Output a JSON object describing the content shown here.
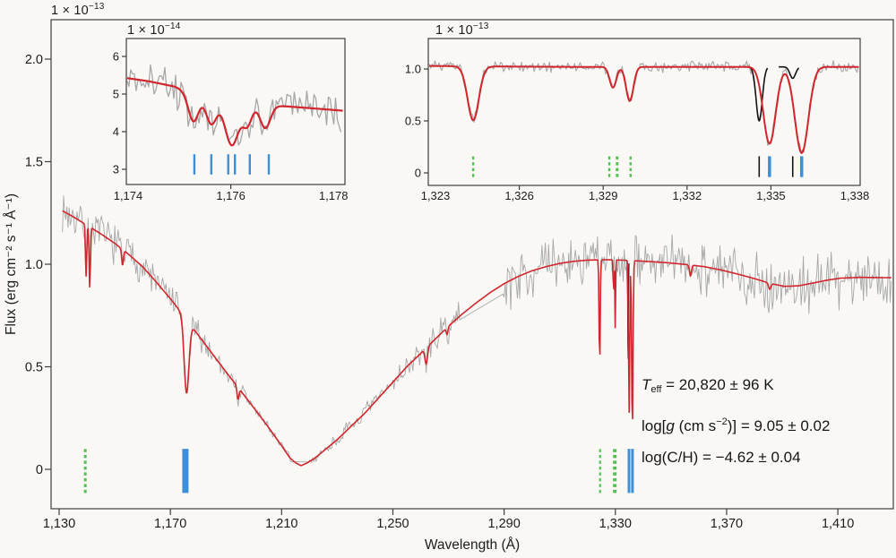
{
  "figure": {
    "kind": "stellar-spectrum-figure",
    "palette": {
      "observed_gray": "#a7a7a7",
      "model_red": "#d2262e",
      "interstellar_black": "#141414",
      "marker_blue": "#3e8fd8",
      "marker_green": "#53c053",
      "axis": "#3d3d3d",
      "text": "#1c1c1c"
    }
  },
  "chart_data": [
    {
      "type": "line",
      "panel": "main",
      "xlabel": "Wavelength (Å)",
      "ylabel": "Flux (erg cm⁻² s⁻¹ Å⁻¹)",
      "scale_label": {
        "base": "1 × 10",
        "exp": "−13"
      },
      "x_range": [
        1127,
        1430
      ],
      "y_range": [
        -0.19,
        2.19
      ],
      "x_ticks": [
        {
          "label": "1,130",
          "value": 1130,
          "tick": true
        },
        {
          "label": "1,170",
          "value": 1170,
          "tick": true
        },
        {
          "label": "1,210",
          "value": 1210,
          "tick": true
        },
        {
          "label": "1,250",
          "value": 1250,
          "tick": true
        },
        {
          "label": "1,290",
          "value": 1290,
          "tick": true
        },
        {
          "label": "1,330",
          "value": 1330,
          "tick": true
        },
        {
          "label": "1,370",
          "value": 1370,
          "tick": true
        },
        {
          "label": "1,410",
          "value": 1410,
          "tick": true
        }
      ],
      "y_ticks": [
        {
          "label": "0",
          "value": 0,
          "tick": true
        },
        {
          "label": "0.5",
          "value": 0.5,
          "tick": true
        },
        {
          "label": "1.0",
          "value": 1.0,
          "tick": true
        },
        {
          "label": "1.5",
          "value": 1.5,
          "tick": true
        },
        {
          "label": "2.0",
          "value": 2.0,
          "tick": true
        }
      ],
      "series": {
        "observed": {
          "color": "#a7a7a7",
          "noise_amp": [
            [
              1131,
              0.075
            ],
            [
              1160,
              0.073
            ],
            [
              1185,
              0.05
            ],
            [
              1200,
              0.032
            ],
            [
              1210,
              0.02
            ],
            [
              1217,
              0.012
            ],
            [
              1224,
              0.02
            ],
            [
              1240,
              0.035
            ],
            [
              1258,
              0.048
            ],
            [
              1274,
              0.06
            ],
            [
              1290,
              0.1
            ],
            [
              1320,
              0.096
            ],
            [
              1350,
              0.105
            ],
            [
              1380,
              0.11
            ],
            [
              1430,
              0.115
            ]
          ]
        },
        "model": {
          "color": "#d2262e",
          "continuum": [
            [
              1131,
              1.262
            ],
            [
              1135,
              1.232
            ],
            [
              1140,
              1.19
            ],
            [
              1145,
              1.148
            ],
            [
              1150,
              1.102
            ],
            [
              1155,
              1.048
            ],
            [
              1160,
              0.988
            ],
            [
              1165,
              0.912
            ],
            [
              1170,
              0.832
            ],
            [
              1175,
              0.745
            ],
            [
              1180,
              0.655
            ],
            [
              1185,
              0.565
            ],
            [
              1190,
              0.475
            ],
            [
              1195,
              0.388
            ],
            [
              1200,
              0.3
            ],
            [
              1205,
              0.21
            ],
            [
              1210,
              0.115
            ],
            [
              1213,
              0.055
            ],
            [
              1215,
              0.032
            ],
            [
              1217,
              0.018
            ],
            [
              1219,
              0.03
            ],
            [
              1222,
              0.055
            ],
            [
              1226,
              0.1
            ],
            [
              1230,
              0.145
            ],
            [
              1235,
              0.21
            ],
            [
              1240,
              0.275
            ],
            [
              1245,
              0.35
            ],
            [
              1250,
              0.425
            ],
            [
              1255,
              0.5
            ],
            [
              1260,
              0.565
            ],
            [
              1265,
              0.632
            ],
            [
              1270,
              0.698
            ],
            [
              1275,
              0.758
            ],
            [
              1280,
              0.812
            ],
            [
              1285,
              0.862
            ],
            [
              1290,
              0.905
            ],
            [
              1295,
              0.94
            ],
            [
              1300,
              0.968
            ],
            [
              1305,
              0.988
            ],
            [
              1310,
              1.004
            ],
            [
              1315,
              1.014
            ],
            [
              1320,
              1.02
            ],
            [
              1326,
              1.022
            ],
            [
              1332,
              1.02
            ],
            [
              1340,
              1.015
            ],
            [
              1348,
              1.008
            ],
            [
              1356,
              0.998
            ],
            [
              1362,
              0.988
            ],
            [
              1368,
              0.972
            ],
            [
              1374,
              0.952
            ],
            [
              1380,
              0.93
            ],
            [
              1386,
              0.905
            ],
            [
              1391,
              0.892
            ],
            [
              1396,
              0.895
            ],
            [
              1401,
              0.908
            ],
            [
              1406,
              0.922
            ],
            [
              1411,
              0.932
            ],
            [
              1418,
              0.936
            ],
            [
              1430,
              0.934
            ]
          ],
          "absorption_lines": [
            {
              "center": 1139.7,
              "depth": 0.25,
              "sigma": 0.22
            },
            {
              "center": 1141.0,
              "depth": 0.3,
              "sigma": 0.22
            },
            {
              "center": 1152.8,
              "depth": 0.08,
              "sigma": 0.3
            },
            {
              "center": 1175.8,
              "depth": 0.36,
              "sigma": 0.85
            },
            {
              "center": 1194.3,
              "depth": 0.06,
              "sigma": 0.35
            },
            {
              "center": 1262.0,
              "depth": 0.08,
              "sigma": 0.45
            },
            {
              "center": 1269.5,
              "depth": 0.035,
              "sigma": 0.3
            },
            {
              "center": 1324.35,
              "depth": 0.52,
              "sigma": 0.2
            },
            {
              "center": 1329.35,
              "depth": 0.2,
              "sigma": 0.12
            },
            {
              "center": 1329.95,
              "depth": 0.33,
              "sigma": 0.13
            },
            {
              "center": 1334.95,
              "depth": 0.74,
              "sigma": 0.22
            },
            {
              "center": 1336.1,
              "depth": 0.84,
              "sigma": 0.24
            },
            {
              "center": 1357.0,
              "depth": 0.055,
              "sigma": 0.35
            },
            {
              "center": 1385.5,
              "depth": 0.03,
              "sigma": 0.4
            }
          ]
        },
        "interstellar": {
          "color": "#141414",
          "segments": [
            {
              "range": [
                1334.0,
                1334.9
              ],
              "center": 1334.58,
              "depth": 0.52,
              "sigma": 0.11
            }
          ]
        }
      },
      "gaps": [
        [
          1213.6,
          1219.2
        ],
        [
          1274.4,
          1289.3
        ]
      ],
      "line_markers": [
        {
          "wl": 1139.4,
          "color": "#53c053",
          "style": "dashed",
          "width": 3
        },
        {
          "wl": 1175.4,
          "color": "#3e8fd8",
          "style": "solid",
          "width": 7
        },
        {
          "wl": 1324.5,
          "color": "#53c053",
          "style": "dashed",
          "width": 2.2
        },
        {
          "wl": 1329.8,
          "color": "#53c053",
          "style": "dashed",
          "width": 4
        },
        {
          "wl": 1334.9,
          "color": "#3e8fd8",
          "style": "solid",
          "width": 3
        },
        {
          "wl": 1336.15,
          "color": "#3e8fd8",
          "style": "solid",
          "width": 3
        }
      ],
      "marker_span": [
        -0.115,
        0.1
      ],
      "annotations": {
        "lines": [
          [
            {
              "t": "T",
              "it": true
            },
            {
              "t": "eff",
              "sub": true
            },
            {
              "t": " = 20,820 ± 96 K"
            }
          ],
          [
            {
              "t": "log["
            },
            {
              "t": "g",
              "it": true
            },
            {
              "t": " (cm s"
            },
            {
              "t": "−2",
              "sup": true
            },
            {
              "t": ")] = 9.05 ± 0.02"
            }
          ],
          [
            {
              "t": "log(C/H) = −4.62 ± 0.04"
            }
          ]
        ]
      }
    },
    {
      "type": "line",
      "panel": "inset-CIII-1175",
      "scale_label": {
        "base": "1 × 10",
        "exp": "−14"
      },
      "x_range": [
        1173.95,
        1178.22
      ],
      "y_range": [
        2.6,
        6.48
      ],
      "x_ticks": [
        {
          "label": "1,174",
          "value": 1174,
          "tick": false
        },
        {
          "label": "1,176",
          "value": 1176,
          "tick": true
        },
        {
          "label": "1,178",
          "value": 1178,
          "tick": false
        }
      ],
      "y_ticks": [
        {
          "label": "3",
          "value": 3,
          "tick": true
        },
        {
          "label": "4",
          "value": 4,
          "tick": true
        },
        {
          "label": "5",
          "value": 5,
          "tick": true
        },
        {
          "label": "6",
          "value": 6,
          "tick": true
        }
      ],
      "series": {
        "observed": {
          "color": "#a7a7a7",
          "noise_amp": [
            [
              1173.9,
              0.42
            ],
            [
              1178.25,
              0.42
            ]
          ]
        },
        "model": {
          "color": "#d2262e",
          "continuum": [
            [
              1173.9,
              5.44
            ],
            [
              1174.4,
              5.34
            ],
            [
              1174.9,
              5.2
            ],
            [
              1175.3,
              4.98
            ],
            [
              1175.9,
              4.8
            ],
            [
              1176.5,
              4.73
            ],
            [
              1177.0,
              4.68
            ],
            [
              1177.5,
              4.63
            ],
            [
              1178.25,
              4.55
            ]
          ],
          "absorption_lines": [
            {
              "center": 1175.27,
              "depth": 0.72,
              "sigma": 0.1
            },
            {
              "center": 1175.62,
              "depth": 0.68,
              "sigma": 0.1
            },
            {
              "center": 1176.02,
              "depth": 1.15,
              "sigma": 0.13
            },
            {
              "center": 1176.32,
              "depth": 0.56,
              "sigma": 0.09
            },
            {
              "center": 1176.67,
              "depth": 0.62,
              "sigma": 0.1
            }
          ]
        },
        "interstellar": {
          "color": "#141414",
          "segments": []
        }
      },
      "gaps": [],
      "line_markers": [
        {
          "wl": 1175.29,
          "color": "#3e8fd8",
          "style": "solid",
          "width": 2.4
        },
        {
          "wl": 1175.62,
          "color": "#3e8fd8",
          "style": "solid",
          "width": 2.4
        },
        {
          "wl": 1175.95,
          "color": "#3e8fd8",
          "style": "solid",
          "width": 2.4
        },
        {
          "wl": 1176.08,
          "color": "#3e8fd8",
          "style": "solid",
          "width": 2.4
        },
        {
          "wl": 1176.37,
          "color": "#3e8fd8",
          "style": "solid",
          "width": 2.4
        },
        {
          "wl": 1176.74,
          "color": "#3e8fd8",
          "style": "solid",
          "width": 2.4
        }
      ],
      "marker_span": [
        2.86,
        3.4
      ]
    },
    {
      "type": "line",
      "panel": "inset-CII-1335",
      "scale_label": {
        "base": "1 × 10",
        "exp": "−13"
      },
      "x_range": [
        1322.74,
        1338.19
      ],
      "y_range": [
        -0.12,
        1.29
      ],
      "x_ticks": [
        {
          "label": "1,323",
          "value": 1323,
          "tick": false
        },
        {
          "label": "1,326",
          "value": 1326,
          "tick": true
        },
        {
          "label": "1,329",
          "value": 1329,
          "tick": true
        },
        {
          "label": "1,332",
          "value": 1332,
          "tick": true
        },
        {
          "label": "1,335",
          "value": 1335,
          "tick": true
        },
        {
          "label": "1,338",
          "value": 1338,
          "tick": false
        }
      ],
      "y_ticks": [
        {
          "label": "0",
          "value": 0,
          "tick": true
        },
        {
          "label": "0.5",
          "value": 0.5,
          "tick": true
        },
        {
          "label": "1.0",
          "value": 1.0,
          "tick": true
        }
      ],
      "series": {
        "observed": {
          "color": "#a7a7a7",
          "noise_amp": [
            [
              1322.7,
              0.042
            ],
            [
              1338.2,
              0.042
            ]
          ]
        },
        "model": {
          "color": "#d2262e",
          "continuum": [
            [
              1322.7,
              1.03
            ],
            [
              1324.0,
              1.025
            ],
            [
              1328.0,
              1.02
            ],
            [
              1338.2,
              1.02
            ]
          ],
          "absorption_lines": [
            {
              "center": 1324.35,
              "depth": 0.52,
              "sigma": 0.2
            },
            {
              "center": 1329.35,
              "depth": 0.2,
              "sigma": 0.12
            },
            {
              "center": 1329.95,
              "depth": 0.33,
              "sigma": 0.13
            },
            {
              "center": 1334.95,
              "depth": 0.74,
              "sigma": 0.22
            },
            {
              "center": 1336.1,
              "depth": 0.83,
              "sigma": 0.24
            }
          ]
        },
        "interstellar": {
          "color": "#141414",
          "segments": [
            {
              "range": [
                1334.02,
                1334.88
              ],
              "center": 1334.58,
              "depth": 0.52,
              "sigma": 0.11
            },
            {
              "range": [
                1335.28,
                1336.0
              ],
              "center": 1335.78,
              "depth": 0.11,
              "sigma": 0.1
            }
          ]
        }
      },
      "gaps": [],
      "line_markers": [
        {
          "wl": 1324.35,
          "color": "#53c053",
          "style": "dashed",
          "width": 2.4
        },
        {
          "wl": 1329.22,
          "color": "#53c053",
          "style": "dashed",
          "width": 2.4
        },
        {
          "wl": 1329.5,
          "color": "#53c053",
          "style": "dashed",
          "width": 3
        },
        {
          "wl": 1329.98,
          "color": "#53c053",
          "style": "dashed",
          "width": 2.4
        },
        {
          "wl": 1334.58,
          "color": "#141414",
          "style": "solid",
          "width": 1.6
        },
        {
          "wl": 1334.95,
          "color": "#3e8fd8",
          "style": "solid",
          "width": 3.5
        },
        {
          "wl": 1335.78,
          "color": "#141414",
          "style": "solid",
          "width": 1.6
        },
        {
          "wl": 1336.1,
          "color": "#3e8fd8",
          "style": "solid",
          "width": 3.5
        }
      ],
      "marker_span": [
        -0.04,
        0.16
      ]
    }
  ]
}
